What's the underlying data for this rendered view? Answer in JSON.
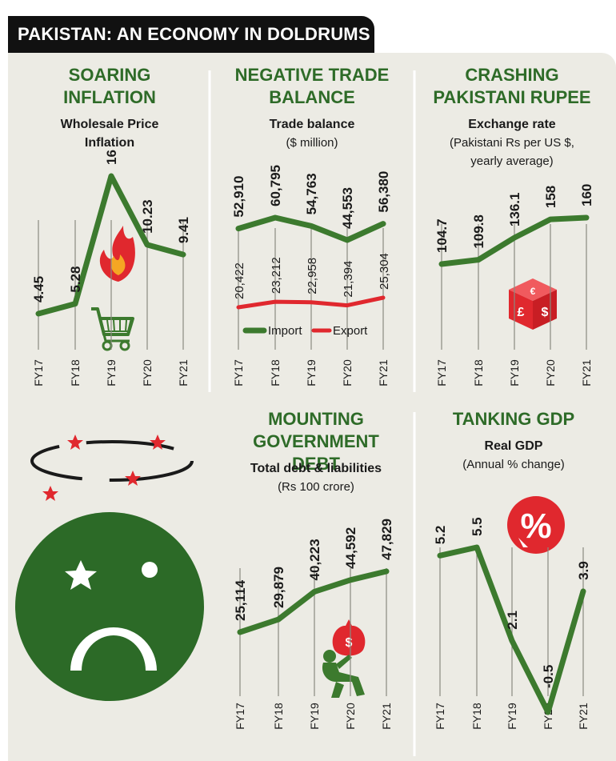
{
  "banner": {
    "title": "PAKISTAN: AN ECONOMY IN DOLDRUMS"
  },
  "colors": {
    "green": "#3c7a2e",
    "red": "#e0282e",
    "dark_green": "#2c6a27",
    "background": "#ecebe4",
    "text": "#1a1a1a",
    "heading_green": "#2e6b28"
  },
  "icons": [
    "fire-cart-icon",
    "currency-dice-icon",
    "dizzy-stars-icon",
    "sad-face-flag-icon",
    "money-bag-carrier-icon",
    "percent-down-icon"
  ],
  "chart_data": [
    {
      "type": "line",
      "heading": "SOARING INFLATION",
      "title": "Wholesale Price Inflation",
      "subtitle": "",
      "categories": [
        "FY17",
        "FY18",
        "FY19",
        "FY20",
        "FY21"
      ],
      "series": [
        {
          "values": [
            4.45,
            5.28,
            16,
            10.23,
            9.41
          ]
        }
      ],
      "labels": [
        "4.45",
        "5.28",
        "16",
        "10.23",
        "9.41"
      ],
      "ylim": [
        0,
        20
      ]
    },
    {
      "type": "line",
      "heading": "NEGATIVE TRADE BALANCE",
      "title": "Trade balance",
      "subtitle": "($ million)",
      "categories": [
        "FY17",
        "FY18",
        "FY19",
        "FY20",
        "FY21"
      ],
      "series": [
        {
          "name": "Import",
          "values": [
            52910,
            60795,
            54763,
            44553,
            56380
          ],
          "labels": [
            "52,910",
            "60,795",
            "54,763",
            "44,553",
            "56,380"
          ]
        },
        {
          "name": "Export",
          "values": [
            20422,
            23212,
            22958,
            21394,
            25304
          ],
          "labels": [
            "20,422",
            "23,212",
            "22,958",
            "21,394",
            "25,304"
          ]
        }
      ],
      "legend": "bottom"
    },
    {
      "type": "line",
      "heading": "CRASHING PAKISTANI RUPEE",
      "title": "Exchange rate",
      "subtitle": "(Pakistani Rs per US $, yearly average)",
      "categories": [
        "FY17",
        "FY18",
        "FY19",
        "FY20",
        "FY21"
      ],
      "series": [
        {
          "values": [
            104.7,
            109.8,
            136.1,
            158,
            160
          ]
        }
      ],
      "labels": [
        "104.7",
        "109.8",
        "136.1",
        "158",
        "160"
      ]
    },
    {
      "type": "line",
      "heading": "MOUNTING GOVERNMENT DEBT",
      "title": "Total debt & liabilities",
      "subtitle": "(Rs 100 crore)",
      "categories": [
        "FY17",
        "FY18",
        "FY19",
        "FY20",
        "FY21"
      ],
      "series": [
        {
          "values": [
            25114,
            29879,
            40223,
            44592,
            47829
          ]
        }
      ],
      "labels": [
        "25,114",
        "29,879",
        "40,223",
        "44,592",
        "47,829"
      ]
    },
    {
      "type": "line",
      "heading": "TANKING GDP",
      "title": "Real GDP",
      "subtitle": "(Annual % change)",
      "categories": [
        "FY17",
        "FY18",
        "FY19",
        "FY20",
        "FY21"
      ],
      "series": [
        {
          "values": [
            5.2,
            5.5,
            2.1,
            -0.5,
            3.9
          ]
        }
      ],
      "labels": [
        "5.2",
        "5.5",
        "2.1",
        "-0.5",
        "3.9"
      ]
    }
  ]
}
